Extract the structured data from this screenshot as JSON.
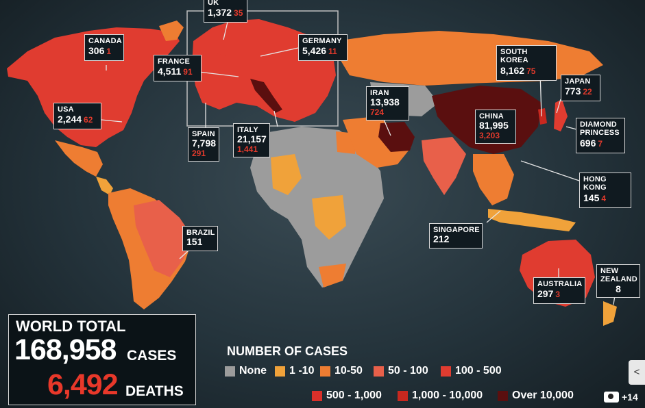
{
  "colors": {
    "none": "#9c9c9c",
    "r1_10": "#f0a23a",
    "r10_50": "#ee7d32",
    "r50_100": "#e8604a",
    "r100_500": "#e03c30",
    "r500_1000": "#d8302a",
    "r1000_10000": "#c8281f",
    "over10000": "#5a0f0f",
    "europe": "#e03c30"
  },
  "callouts": [
    {
      "id": "uk",
      "name": "UK",
      "cases": "1,372",
      "deaths": "35"
    },
    {
      "id": "canada",
      "name": "CANADA",
      "cases": "306",
      "deaths": "1"
    },
    {
      "id": "germany",
      "name": "GERMANY",
      "cases": "5,426",
      "deaths": "11"
    },
    {
      "id": "france",
      "name": "FRANCE",
      "cases": "4,511",
      "deaths": "91"
    },
    {
      "id": "south_korea",
      "name": "SOUTH KOREA",
      "cases": "8,162",
      "deaths": "75"
    },
    {
      "id": "japan",
      "name": "JAPAN",
      "cases": "773",
      "deaths": "22"
    },
    {
      "id": "iran",
      "name": "IRAN",
      "cases": "13,938",
      "deaths": "724"
    },
    {
      "id": "usa",
      "name": "USA",
      "cases": "2,244",
      "deaths": "62"
    },
    {
      "id": "china",
      "name": "CHINA",
      "cases": "81,995",
      "deaths": "3,203"
    },
    {
      "id": "diamond_princess",
      "name": "DIAMOND PRINCESS",
      "cases": "696",
      "deaths": "7"
    },
    {
      "id": "spain",
      "name": "SPAIN",
      "cases": "7,798",
      "deaths": "291"
    },
    {
      "id": "italy",
      "name": "ITALY",
      "cases": "21,157",
      "deaths": "1,441"
    },
    {
      "id": "hong_kong",
      "name": "HONG KONG",
      "cases": "145",
      "deaths": "4"
    },
    {
      "id": "brazil",
      "name": "BRAZIL",
      "cases": "151",
      "deaths": ""
    },
    {
      "id": "singapore",
      "name": "SINGAPORE",
      "cases": "212",
      "deaths": ""
    },
    {
      "id": "australia",
      "name": "AUSTRALIA",
      "cases": "297",
      "deaths": "3"
    },
    {
      "id": "new_zealand",
      "name": "NEW ZEALAND",
      "cases": "8",
      "deaths": ""
    }
  ],
  "world_total": {
    "label": "WORLD TOTAL",
    "cases": "168,958",
    "cases_label": "CASES",
    "deaths": "6,492",
    "deaths_label": "DEATHS"
  },
  "legend": {
    "title": "NUMBER OF CASES",
    "items": [
      {
        "label": "None",
        "color": "#9c9c9c"
      },
      {
        "label": "1 -10",
        "color": "#f0a23a"
      },
      {
        "label": "10-50",
        "color": "#ee7d32"
      },
      {
        "label": "50 - 100",
        "color": "#e8604a"
      },
      {
        "label": "100 - 500",
        "color": "#e03c30"
      },
      {
        "label": "500 - 1,000",
        "color": "#d8302a"
      },
      {
        "label": "1,000 - 10,000",
        "color": "#c8281f"
      },
      {
        "label": "Over 10,000",
        "color": "#5a0f0f"
      }
    ]
  },
  "photo_count": "+14"
}
